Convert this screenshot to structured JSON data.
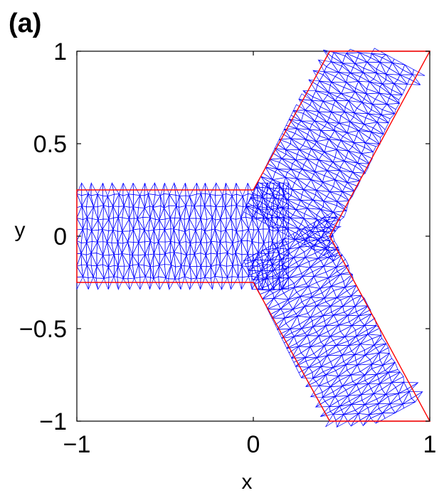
{
  "figure": {
    "panel_label": "(a)"
  },
  "chart_data": {
    "type": "mesh",
    "xlabel": "x",
    "ylabel": "y",
    "xlim": [
      -1,
      1
    ],
    "ylim": [
      -1,
      1
    ],
    "xticks": [
      -1,
      0,
      1
    ],
    "yticks": [
      -1,
      -0.5,
      0,
      0.5,
      1
    ],
    "xtick_labels": [
      "−1",
      "0",
      "1"
    ],
    "ytick_labels": [
      "−1",
      "−0.5",
      "0",
      "0.5",
      "1"
    ],
    "mesh_color": "#0000ff",
    "boundary_color": "#ff0000",
    "boundary": [
      [
        -1,
        0.25
      ],
      [
        0,
        0.25
      ],
      [
        0.433,
        1
      ],
      [
        1,
        1
      ],
      [
        0.433,
        0
      ],
      [
        1,
        -1
      ],
      [
        0.433,
        -1
      ],
      [
        0,
        -0.25
      ],
      [
        -1,
        -0.25
      ]
    ],
    "branches": [
      {
        "from": [
          -1,
          0
        ],
        "to": [
          0.2,
          0
        ],
        "half_width": 0.25
      },
      {
        "from": [
          0.2,
          0
        ],
        "to": [
          0.717,
          1
        ],
        "half_width": 0.25
      },
      {
        "from": [
          0.2,
          0
        ],
        "to": [
          0.717,
          -1
        ],
        "half_width": 0.25
      }
    ]
  }
}
